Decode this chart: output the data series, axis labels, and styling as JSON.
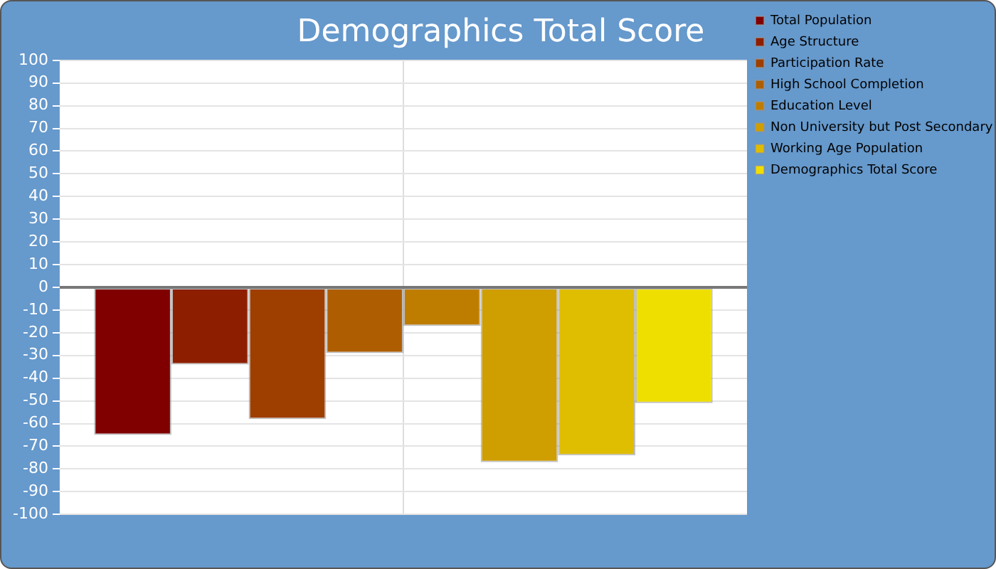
{
  "chart_data": {
    "type": "bar",
    "title": "Demographics Total Score",
    "categories": [
      null
    ],
    "series": [
      {
        "name": "Total Population",
        "color": "#800000",
        "values": [
          -65
        ]
      },
      {
        "name": "Age Structure",
        "color": "#8e1e00",
        "values": [
          -34
        ]
      },
      {
        "name": "Participation Rate",
        "color": "#9e3f00",
        "values": [
          -58
        ]
      },
      {
        "name": "High School Completion",
        "color": "#ae5e00",
        "values": [
          -29
        ]
      },
      {
        "name": "Education Level",
        "color": "#bf7d00",
        "values": [
          -17
        ]
      },
      {
        "name": "Non University but Post Secondary",
        "color": "#cf9e00",
        "values": [
          -77
        ]
      },
      {
        "name": "Working Age Population",
        "color": "#dfbd00",
        "values": [
          -74
        ]
      },
      {
        "name": "Demographics Total Score",
        "color": "#efdf00",
        "values": [
          -51
        ]
      }
    ],
    "ylim": [
      -100,
      100
    ],
    "yticks": [
      -100,
      -90,
      -80,
      -70,
      -60,
      -50,
      -40,
      -30,
      -20,
      -10,
      0,
      10,
      20,
      30,
      40,
      50,
      60,
      70,
      80,
      90,
      100
    ],
    "grid": true,
    "legend": "right"
  }
}
